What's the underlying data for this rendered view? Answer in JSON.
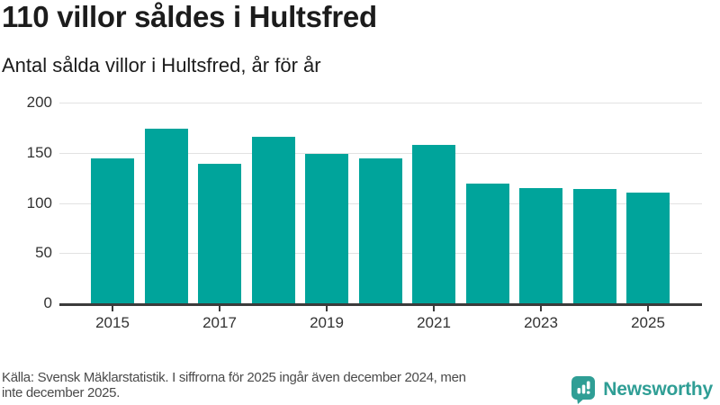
{
  "header": {
    "title": "110 villor såldes i Hultsfred",
    "subtitle": "Antal sålda villor i Hultsfred, år för år"
  },
  "chart_data": {
    "type": "bar",
    "title": "110 villor såldes i Hultsfred",
    "subtitle": "Antal sålda villor i Hultsfred, år för år",
    "categories": [
      2015,
      2016,
      2017,
      2018,
      2019,
      2020,
      2021,
      2022,
      2023,
      2024,
      2025
    ],
    "values": [
      144,
      174,
      139,
      166,
      149,
      144,
      158,
      119,
      115,
      114,
      110
    ],
    "xlabel": "",
    "ylabel": "",
    "ylim": [
      0,
      200
    ],
    "yticks": [
      0,
      50,
      100,
      150,
      200
    ],
    "xticks": [
      2015,
      2017,
      2019,
      2021,
      2023,
      2025
    ],
    "grid": true,
    "legend_position": "none",
    "bar_color": "#00A49B",
    "gridline_color": "#e2e2e2",
    "axis_color": "#3b3b3b"
  },
  "footer": {
    "source_lines": [
      "Källa: Svensk Mäklarstatistik. I siffrorna för 2025 ingår även december 2024, men",
      "inte december 2025."
    ]
  },
  "branding": {
    "name": "Newsworthy",
    "color": "#2f9e95",
    "icon": "newsworthy-bar-chart-bubble-icon"
  }
}
